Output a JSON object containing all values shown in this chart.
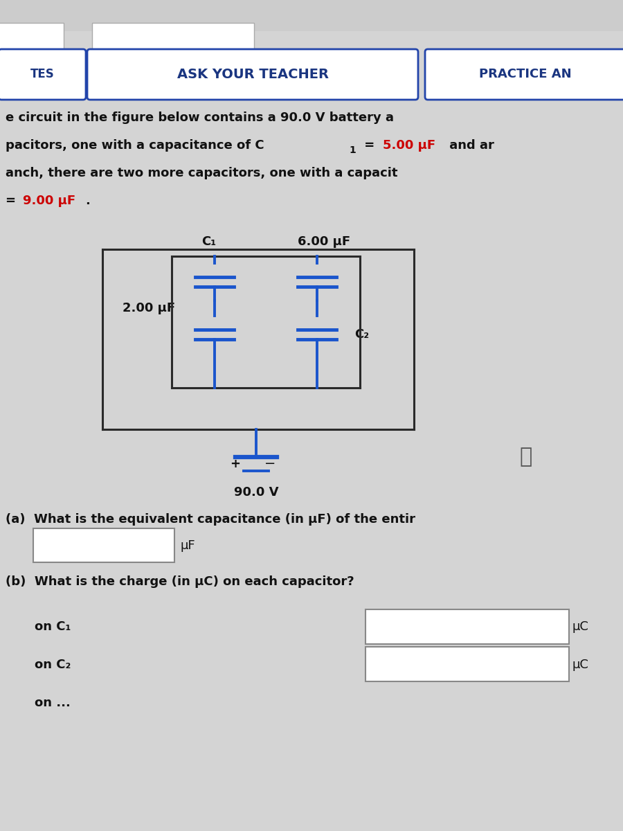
{
  "bg_color": "#d4d4d4",
  "header_bg": "#e0e0e0",
  "button_border_color": "#2244aa",
  "button_text_color": "#1a3580",
  "button_texts": [
    "TES",
    "ASK YOUR TEACHER",
    "PRACTICE AN"
  ],
  "red_color": "#cc0000",
  "dark_text": "#111111",
  "circuit_line_color": "#2a2a2a",
  "cap_line_color": "#1a55cc",
  "label_c1": "C₁",
  "label_6uf": "6.00 μF",
  "label_2uf": "2.00 μF",
  "label_c2": "C₂",
  "label_battery": "90.0 V",
  "label_plus": "+",
  "label_minus": "−",
  "qa_text_a": "(a)  What is the equivalent capacitance (in μF) of the entir",
  "qa_unit_a": "μF",
  "qa_text_b": "(b)  What is the charge (in μC) on each capacitor?",
  "qa_on_c1": "on C₁",
  "qa_on_c2": "on C₂",
  "qa_unit_b": "μC",
  "info_icon": "ⓘ",
  "partial_box1_top_text": "",
  "partial_box2_top_text": ""
}
